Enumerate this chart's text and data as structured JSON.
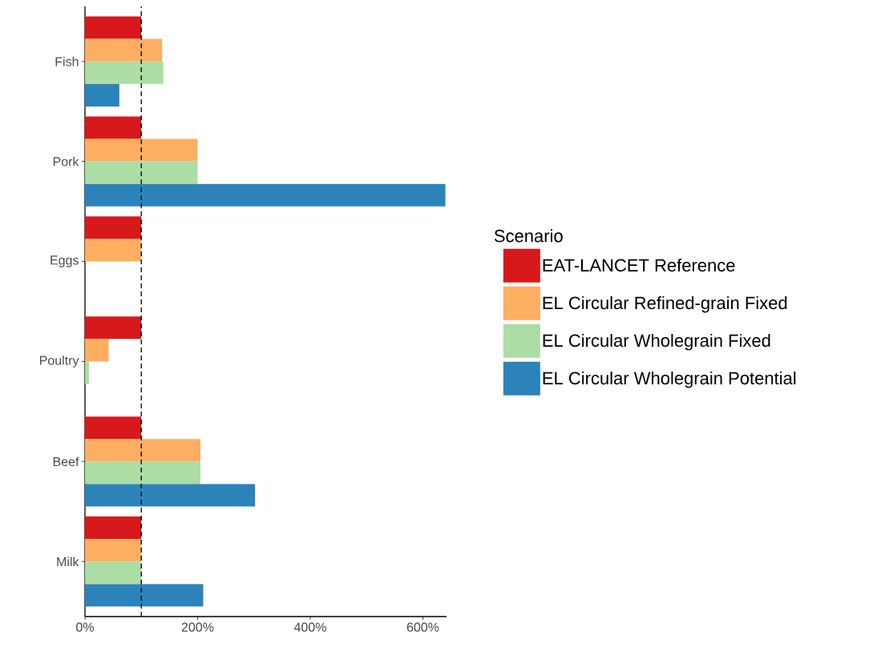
{
  "chart_data": {
    "type": "bar",
    "orientation": "horizontal",
    "categories": [
      "Fish",
      "Pork",
      "Eggs",
      "Poultry",
      "Beef",
      "Milk"
    ],
    "series": [
      {
        "name": "EAT-LANCET Reference",
        "color": "#d7191c",
        "values": [
          100,
          100,
          100,
          100,
          100,
          100
        ]
      },
      {
        "name": "EL Circular Refined-grain Fixed",
        "color": "#fdae61",
        "values": [
          137,
          200,
          100,
          42,
          205,
          100
        ]
      },
      {
        "name": "EL Circular Wholegrain Fixed",
        "color": "#abdda4",
        "values": [
          139,
          200,
          null,
          7,
          205,
          100
        ]
      },
      {
        "name": "EL Circular Wholegrain Potential",
        "color": "#2b83ba",
        "values": [
          61,
          640,
          null,
          null,
          302,
          210
        ]
      }
    ],
    "xlim": [
      0,
      642
    ],
    "xticks": [
      {
        "value": 0,
        "label": "0%"
      },
      {
        "value": 200,
        "label": "200%"
      },
      {
        "value": 400,
        "label": "400%"
      },
      {
        "value": 600,
        "label": "600%"
      }
    ],
    "ref_lines": [
      {
        "axis": "x",
        "value": 100,
        "line_style": "dashed"
      }
    ],
    "legend_title": "Scenario",
    "legend": "right",
    "grid": false
  }
}
